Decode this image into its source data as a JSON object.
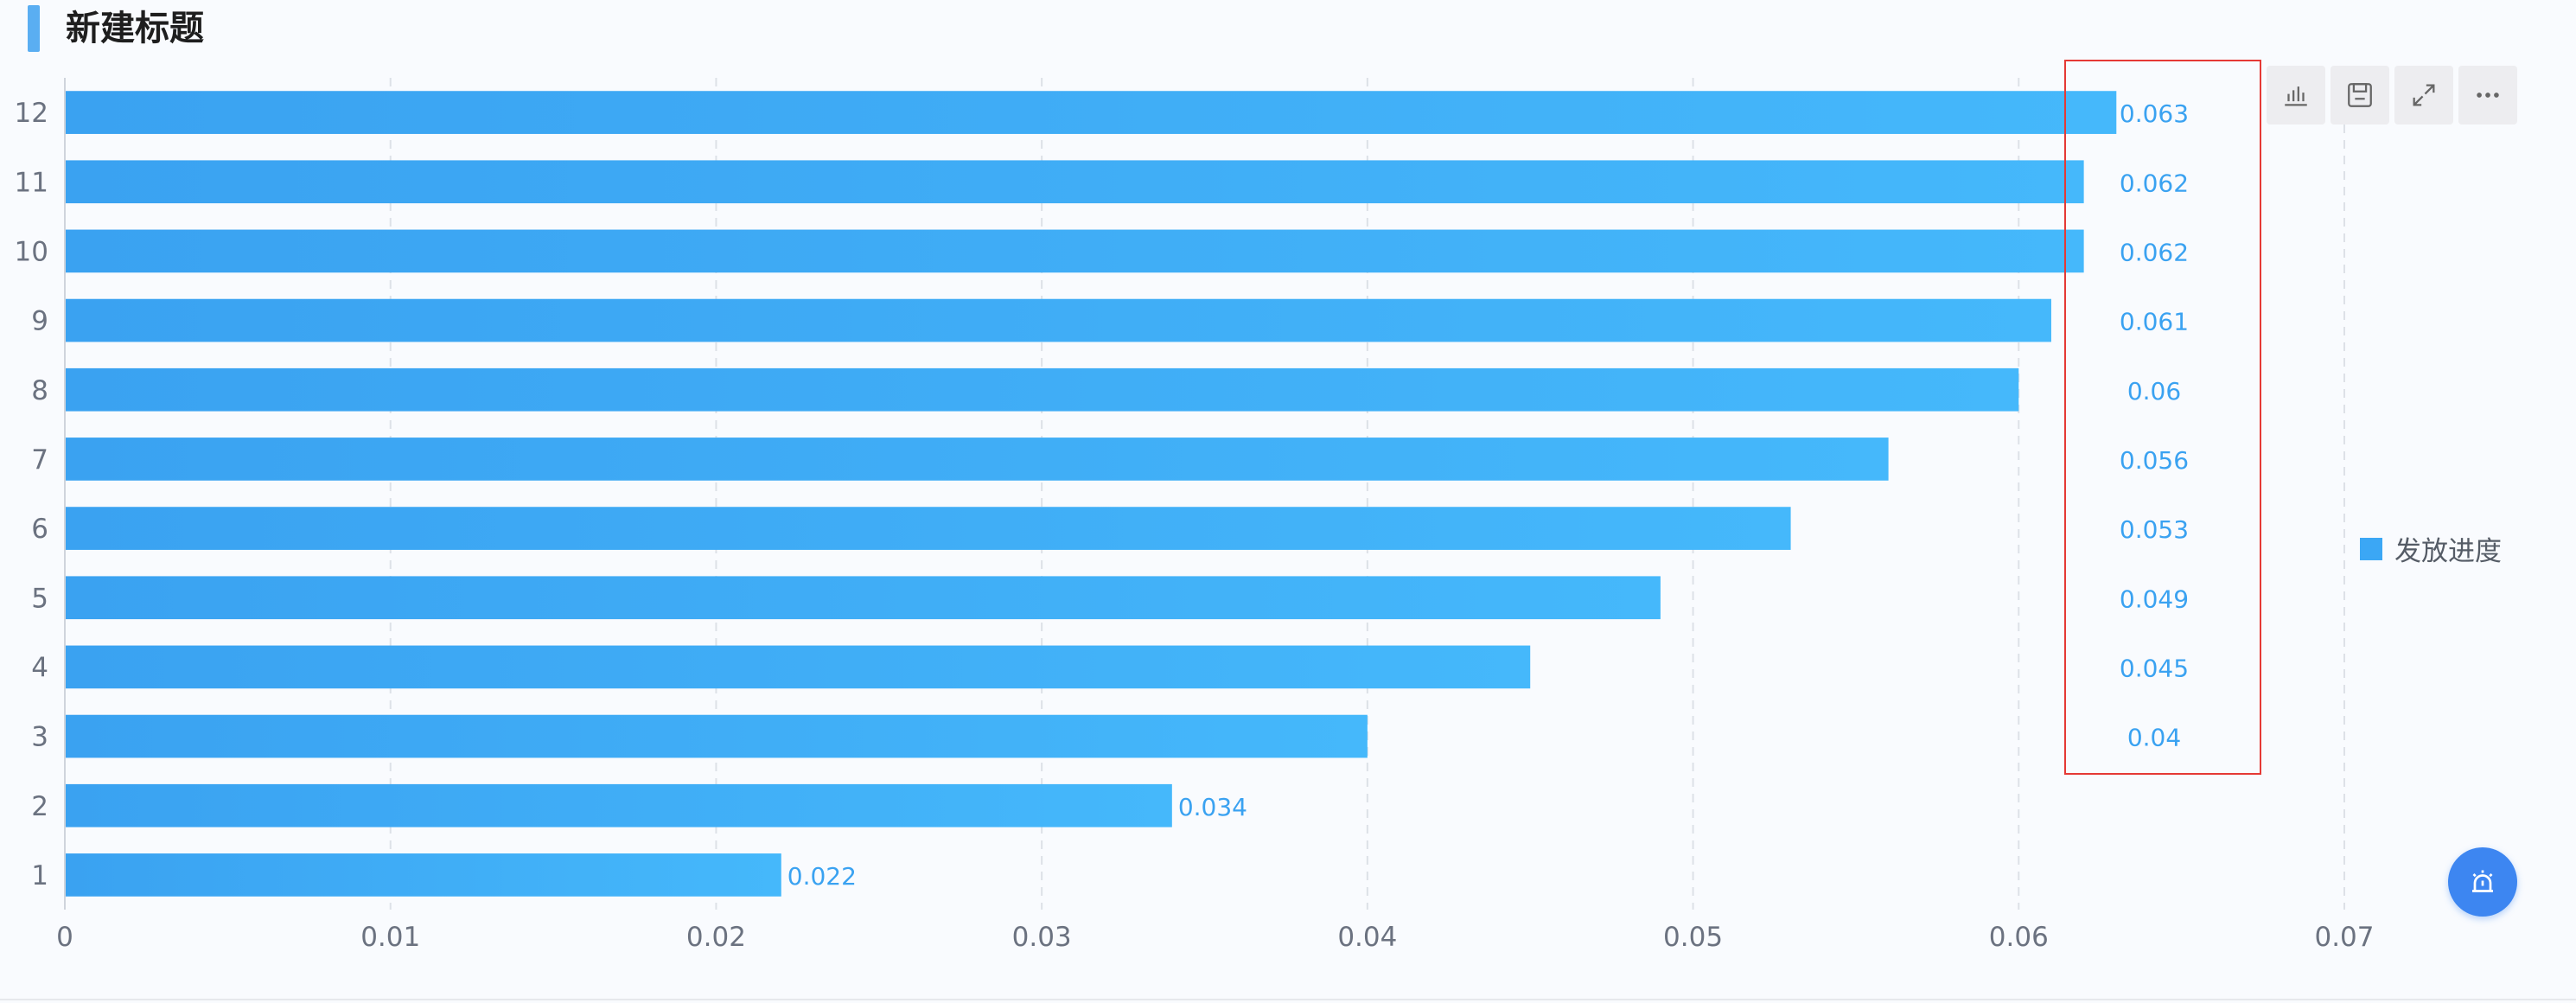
{
  "header": {
    "title": "新建标题"
  },
  "toolbar": {
    "buttons": [
      {
        "icon": "bar-chart-icon"
      },
      {
        "icon": "save-icon"
      },
      {
        "icon": "fullscreen-icon"
      },
      {
        "icon": "more-icon"
      }
    ]
  },
  "legend": {
    "label": "发放进度",
    "color": "#3ba7f5"
  },
  "colors": {
    "bar_start": "#3aa2f1",
    "bar_end": "#45b8fb",
    "label": "#3aa2f1",
    "highlight_box": "#e53935"
  },
  "chart_data": {
    "type": "bar",
    "orientation": "horizontal",
    "categories": [
      "1",
      "2",
      "3",
      "4",
      "5",
      "6",
      "7",
      "8",
      "9",
      "10",
      "11",
      "12"
    ],
    "series": [
      {
        "name": "发放进度",
        "values": [
          0.022,
          0.034,
          0.04,
          0.045,
          0.049,
          0.053,
          0.056,
          0.06,
          0.061,
          0.062,
          0.062,
          0.063
        ],
        "labels": [
          "0.022",
          "0.034",
          "0.04",
          "0.045",
          "0.049",
          "0.053",
          "0.056",
          "0.06",
          "0.061",
          "0.062",
          "0.062",
          "0.063"
        ]
      }
    ],
    "xticks": [
      "0",
      "0.01",
      "0.02",
      "0.03",
      "0.04",
      "0.05",
      "0.06",
      "0.07"
    ],
    "xlim": [
      0,
      0.07
    ],
    "grid": true,
    "legend_position": "right",
    "highlight_box_around_labels_for": [
      "3",
      "4",
      "5",
      "6",
      "7",
      "8",
      "9",
      "10",
      "11",
      "12"
    ]
  }
}
